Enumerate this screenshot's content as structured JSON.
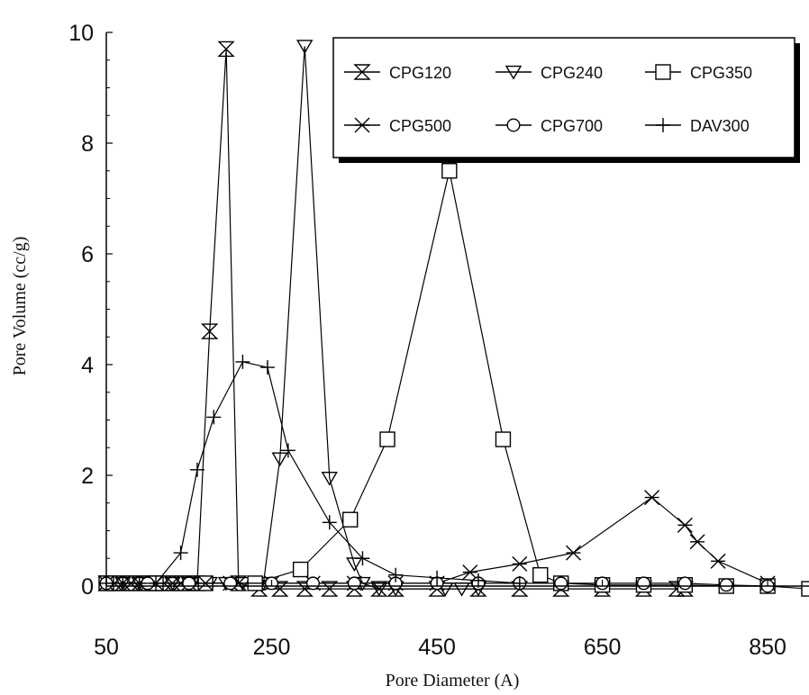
{
  "chart_data": {
    "type": "line",
    "title": "",
    "xlabel": "Pore Diameter (A)",
    "ylabel": "Pore Volume (cc/g)",
    "xlim": [
      50,
      900
    ],
    "ylim": [
      0,
      10
    ],
    "xticks": [
      50,
      250,
      450,
      650,
      850
    ],
    "xtick_labels": [
      "50",
      "250",
      "450",
      "650",
      "850"
    ],
    "yticks": [
      0,
      2,
      4,
      6,
      8,
      10
    ],
    "ytick_labels": [
      "0",
      "2",
      "4",
      "6",
      "8",
      "10"
    ],
    "grid": false,
    "legend_position": "top-right",
    "series": [
      {
        "name": "CPG120",
        "marker": "hourglass",
        "x": [
          50,
          60,
          70,
          80,
          90,
          100,
          110,
          120,
          130,
          140,
          150,
          160,
          175,
          195,
          210,
          235,
          260,
          290,
          320,
          350,
          380,
          400,
          450,
          500,
          550,
          600,
          650,
          700,
          740,
          750
        ],
        "y": [
          0.05,
          0.05,
          0.05,
          0.05,
          0.05,
          0.05,
          0.05,
          0.05,
          0.05,
          0.05,
          0.05,
          0.05,
          4.6,
          9.7,
          0.05,
          -0.05,
          -0.05,
          -0.05,
          -0.05,
          -0.05,
          -0.05,
          -0.05,
          -0.05,
          -0.05,
          -0.05,
          -0.05,
          -0.05,
          -0.05,
          -0.05,
          -0.05
        ]
      },
      {
        "name": "CPG240",
        "marker": "triangle-down",
        "x": [
          50,
          70,
          90,
          110,
          130,
          150,
          175,
          195,
          215,
          240,
          260,
          290,
          320,
          350,
          360,
          380,
          400,
          460,
          480,
          500
        ],
        "y": [
          0.05,
          0.05,
          0.05,
          0.05,
          0.05,
          0.05,
          0.05,
          0.05,
          0.05,
          0.05,
          2.3,
          9.75,
          1.95,
          0.4,
          0.05,
          -0.05,
          -0.05,
          -0.05,
          -0.05,
          -0.05
        ]
      },
      {
        "name": "CPG350",
        "marker": "square",
        "x": [
          50,
          110,
          170,
          230,
          285,
          345,
          390,
          465,
          530,
          575,
          600,
          650,
          700,
          750,
          800,
          850,
          900
        ],
        "y": [
          0.05,
          0.05,
          0.05,
          0.05,
          0.3,
          1.2,
          2.65,
          7.5,
          2.65,
          0.2,
          0.05,
          0.02,
          0.02,
          0.02,
          0.0,
          0.0,
          -0.05
        ]
      },
      {
        "name": "CPG500",
        "marker": "arrows",
        "x": [
          50,
          80,
          110,
          140,
          170,
          200,
          250,
          300,
          350,
          400,
          450,
          490,
          550,
          615,
          710,
          750,
          765,
          790,
          850
        ],
        "y": [
          0.05,
          0.05,
          0.05,
          0.05,
          0.05,
          0.05,
          0.05,
          0.05,
          0.05,
          0.05,
          0.05,
          0.25,
          0.4,
          0.6,
          1.6,
          1.1,
          0.8,
          0.45,
          0.05
        ]
      },
      {
        "name": "CPG700",
        "marker": "circle",
        "x": [
          50,
          100,
          150,
          200,
          250,
          300,
          350,
          400,
          450,
          500,
          550,
          600,
          650,
          700,
          750,
          800,
          850
        ],
        "y": [
          0.05,
          0.05,
          0.05,
          0.05,
          0.05,
          0.05,
          0.05,
          0.05,
          0.05,
          0.05,
          0.05,
          0.05,
          0.05,
          0.05,
          0.05,
          0.02,
          0.0
        ]
      },
      {
        "name": "DAV300",
        "marker": "plus",
        "x": [
          50,
          70,
          90,
          110,
          140,
          160,
          180,
          215,
          245,
          270,
          320,
          360,
          400,
          450,
          500,
          550
        ],
        "y": [
          0.05,
          0.05,
          0.05,
          0.05,
          0.6,
          2.1,
          3.05,
          4.05,
          3.95,
          2.45,
          1.15,
          0.5,
          0.2,
          0.15,
          0.1,
          0.05
        ]
      }
    ]
  }
}
